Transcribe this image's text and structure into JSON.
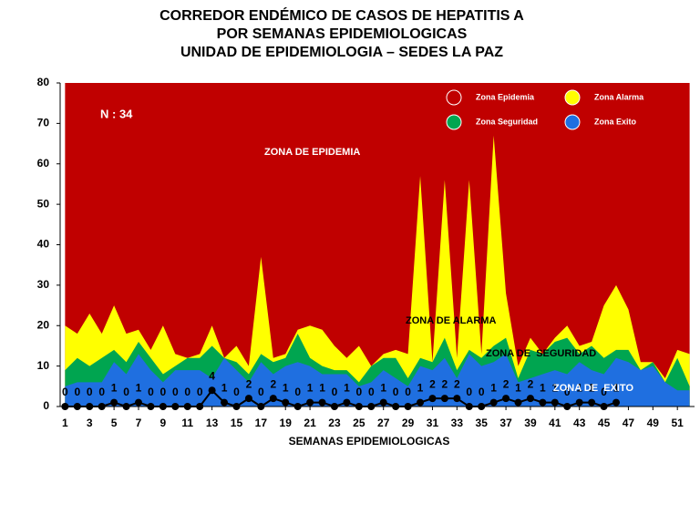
{
  "chart_data": {
    "type": "area",
    "title": [
      "CORREDOR ENDÉMICO DE CASOS DE HEPATITIS A",
      "POR SEMANAS EPIDEMIOLOGICAS",
      "UNIDAD DE EPIDEMIOLOGIA – SEDES LA PAZ"
    ],
    "x_label": "SEMANAS EPIDEMIOLOGICAS",
    "x": [
      1,
      2,
      3,
      4,
      5,
      6,
      7,
      8,
      9,
      10,
      11,
      12,
      13,
      14,
      15,
      16,
      17,
      18,
      19,
      20,
      21,
      22,
      23,
      24,
      25,
      26,
      27,
      28,
      29,
      30,
      31,
      32,
      33,
      34,
      35,
      36,
      37,
      38,
      39,
      40,
      41,
      42,
      43,
      44,
      45,
      46,
      47,
      48,
      49,
      50,
      51,
      52
    ],
    "xlim": [
      0.6,
      52.4
    ],
    "xticks": [
      1,
      3,
      5,
      7,
      9,
      11,
      13,
      15,
      17,
      19,
      21,
      23,
      25,
      27,
      29,
      31,
      33,
      35,
      37,
      39,
      41,
      43,
      45,
      47,
      49,
      51
    ],
    "ylim": [
      0,
      80
    ],
    "yticks": [
      0,
      10,
      20,
      30,
      40,
      50,
      60,
      70,
      80
    ],
    "grid": false,
    "legend": "upper right",
    "series": [
      {
        "name": "Zona Epidemia",
        "color": "#c00000",
        "values": [
          80,
          80,
          80,
          80,
          80,
          80,
          80,
          80,
          80,
          80,
          80,
          80,
          80,
          80,
          80,
          80,
          80,
          80,
          80,
          80,
          80,
          80,
          80,
          80,
          80,
          80,
          80,
          80,
          80,
          80,
          80,
          80,
          80,
          80,
          80,
          80,
          80,
          80,
          80,
          80,
          80,
          80,
          80,
          80,
          80,
          80,
          80,
          80,
          80,
          80,
          80,
          80
        ]
      },
      {
        "name": "Zona Alarma",
        "color": "#ffff00",
        "values": [
          20,
          18,
          23,
          18,
          25,
          18,
          19,
          14,
          20,
          13,
          12,
          13,
          20,
          12,
          15,
          10,
          37,
          12,
          13,
          19,
          20,
          19,
          15,
          12,
          15,
          10,
          13,
          14,
          13,
          57,
          11,
          56,
          12,
          56,
          13,
          67,
          28,
          10,
          17,
          13,
          17,
          20,
          15,
          16,
          25,
          30,
          24,
          11,
          11,
          7,
          14,
          13
        ]
      },
      {
        "name": "Zona Seguridad",
        "color": "#00a550",
        "values": [
          9,
          12,
          10,
          12,
          14,
          11,
          16,
          12,
          8,
          10,
          12,
          12,
          15,
          12,
          11,
          8,
          13,
          11,
          12,
          18,
          12,
          10,
          9,
          9,
          6,
          10,
          12,
          12,
          7,
          12,
          11,
          17,
          9,
          14,
          12,
          15,
          17,
          7,
          14,
          13,
          16,
          17,
          13,
          15,
          12,
          14,
          14,
          9,
          11,
          6,
          12,
          5
        ]
      },
      {
        "name": "Zona Exito",
        "color": "#1f6fe0",
        "values": [
          5,
          6,
          6,
          6,
          11,
          8,
          13,
          9,
          6,
          9,
          9,
          9,
          7,
          12,
          9,
          6,
          11,
          8,
          10,
          11,
          10,
          8,
          8,
          8,
          5,
          6,
          9,
          7,
          5,
          10,
          9,
          12,
          7,
          13,
          10,
          11,
          13,
          6,
          7,
          8,
          9,
          8,
          11,
          9,
          8,
          12,
          11,
          9,
          10,
          6,
          4,
          4
        ]
      }
    ],
    "cases": {
      "color": "#000000",
      "values": [
        0,
        0,
        0,
        0,
        1,
        0,
        1,
        0,
        0,
        0,
        0,
        0,
        4,
        1,
        0,
        2,
        0,
        2,
        1,
        0,
        1,
        1,
        0,
        1,
        0,
        0,
        1,
        0,
        0,
        1,
        2,
        2,
        2,
        0,
        0,
        1,
        2,
        1,
        2,
        1,
        1,
        0,
        1,
        1,
        0,
        1,
        null,
        null,
        null,
        null,
        null,
        null
      ]
    },
    "annotations": [
      "N : 34",
      "ZONA DE EPIDEMIA",
      "ZONA DE ALARMA",
      "ZONA DE  SEGURIDAD",
      "ZONA DE  EXITO"
    ]
  }
}
